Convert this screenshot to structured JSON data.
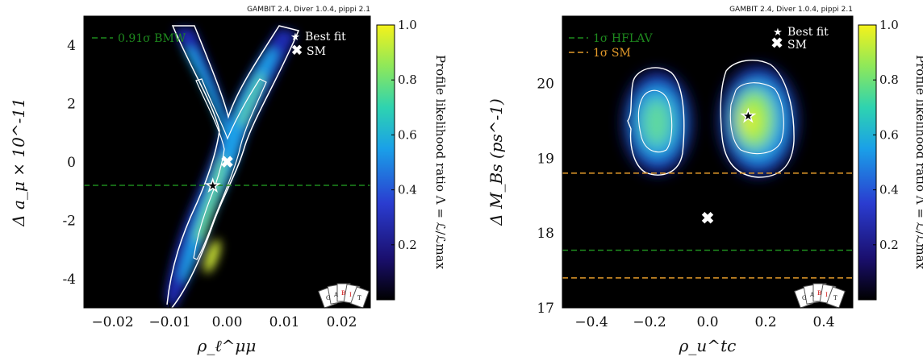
{
  "colors": {
    "background": "#000000",
    "contour": "#ffffff",
    "green_line": "#1e8a1e",
    "orange_line": "#e39a2a",
    "colormap": [
      "#000000",
      "#1a0f6e",
      "#2a3cd0",
      "#1aa0e8",
      "#2ed3b0",
      "#8ee85a",
      "#f5f21a"
    ]
  },
  "chart_data": [
    {
      "type": "heatmap",
      "header": "GAMBIT 2.4, Diver 1.0.4, pippi 2.1",
      "xlabel": "ρ_ℓ^μμ",
      "ylabel": "Δ a_μ × 10^-11",
      "xlim": [
        -0.025,
        0.025
      ],
      "ylim": [
        -5,
        5
      ],
      "x_ticks": [
        "−0.02",
        "−0.01",
        "0.00",
        "0.01",
        "0.02"
      ],
      "x_tick_values": [
        -0.02,
        -0.01,
        0.0,
        0.01,
        0.02
      ],
      "y_ticks": [
        "-4",
        "-2",
        "0",
        "2",
        "4"
      ],
      "y_tick_values": [
        -4,
        -2,
        0,
        2,
        4
      ],
      "colorbar": {
        "label": "Profile likelihood ratio Λ = ℒ/ℒmax",
        "range": [
          0,
          1
        ],
        "ticks": [
          "0.2",
          "0.4",
          "0.6",
          "0.8",
          "1.0"
        ],
        "tick_values": [
          0.2,
          0.4,
          0.6,
          0.8,
          1.0
        ]
      },
      "hlines": [
        {
          "label": "0.91σ BMW",
          "y": -0.8,
          "color": "#1e8a1e"
        }
      ],
      "best_fit": {
        "label": "Best fit",
        "x": -0.0025,
        "y": -0.8
      },
      "sm_point": {
        "label": "SM",
        "x": 0.0,
        "y": 0.0
      }
    },
    {
      "type": "heatmap",
      "header": "GAMBIT 2.4, Diver 1.0.4, pippi 2.1",
      "xlabel": "ρ_u^tc",
      "ylabel": "Δ M_Bs (ps^-1)",
      "xlim": [
        -0.5,
        0.5
      ],
      "ylim": [
        17,
        20.9
      ],
      "x_ticks": [
        "−0.4",
        "−0.2",
        "0.0",
        "0.2",
        "0.4"
      ],
      "x_tick_values": [
        -0.4,
        -0.2,
        0.0,
        0.2,
        0.4
      ],
      "y_ticks": [
        "17",
        "18",
        "19",
        "20"
      ],
      "y_tick_values": [
        17,
        18,
        19,
        20
      ],
      "colorbar": {
        "label": "Profile likelihood ratio Λ = ℒ/ℒmax",
        "range": [
          0,
          1
        ],
        "ticks": [
          "0.2",
          "0.4",
          "0.6",
          "0.8",
          "1.0"
        ],
        "tick_values": [
          0.2,
          0.4,
          0.6,
          0.8,
          1.0
        ]
      },
      "hlines": [
        {
          "label": "1σ HFLAV",
          "y": 17.77,
          "color": "#1e8a1e"
        },
        {
          "label": "1σ SM",
          "y": 18.8,
          "color": "#e39a2a"
        },
        {
          "label": "",
          "y": 17.4,
          "color": "#e39a2a"
        }
      ],
      "best_fit": {
        "label": "Best fit",
        "x": 0.14,
        "y": 19.57
      },
      "sm_point": {
        "label": "SM",
        "x": 0.0,
        "y": 18.2
      }
    }
  ]
}
